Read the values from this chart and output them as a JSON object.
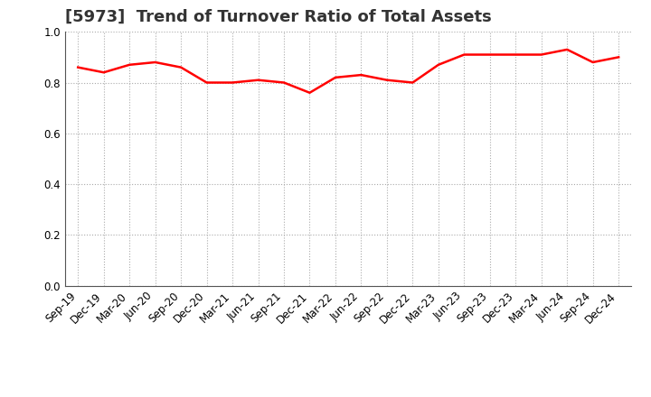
{
  "title": "[5973]  Trend of Turnover Ratio of Total Assets",
  "x_labels": [
    "Sep-19",
    "Dec-19",
    "Mar-20",
    "Jun-20",
    "Sep-20",
    "Dec-20",
    "Mar-21",
    "Jun-21",
    "Sep-21",
    "Dec-21",
    "Mar-22",
    "Jun-22",
    "Sep-22",
    "Dec-22",
    "Mar-23",
    "Jun-23",
    "Sep-23",
    "Dec-23",
    "Mar-24",
    "Jun-24",
    "Sep-24",
    "Dec-24"
  ],
  "y_values": [
    0.86,
    0.84,
    0.87,
    0.88,
    0.86,
    0.8,
    0.8,
    0.81,
    0.8,
    0.76,
    0.82,
    0.83,
    0.81,
    0.8,
    0.87,
    0.91,
    0.91,
    0.91,
    0.91,
    0.93,
    0.88,
    0.9
  ],
  "line_color": "#ff0000",
  "line_width": 1.8,
  "ylim": [
    0.0,
    1.0
  ],
  "yticks": [
    0.0,
    0.2,
    0.4,
    0.6,
    0.8,
    1.0
  ],
  "grid_color": "#aaaaaa",
  "grid_style": "dotted",
  "background_color": "#ffffff",
  "title_fontsize": 13,
  "tick_fontsize": 8.5,
  "title_color": "#333333"
}
